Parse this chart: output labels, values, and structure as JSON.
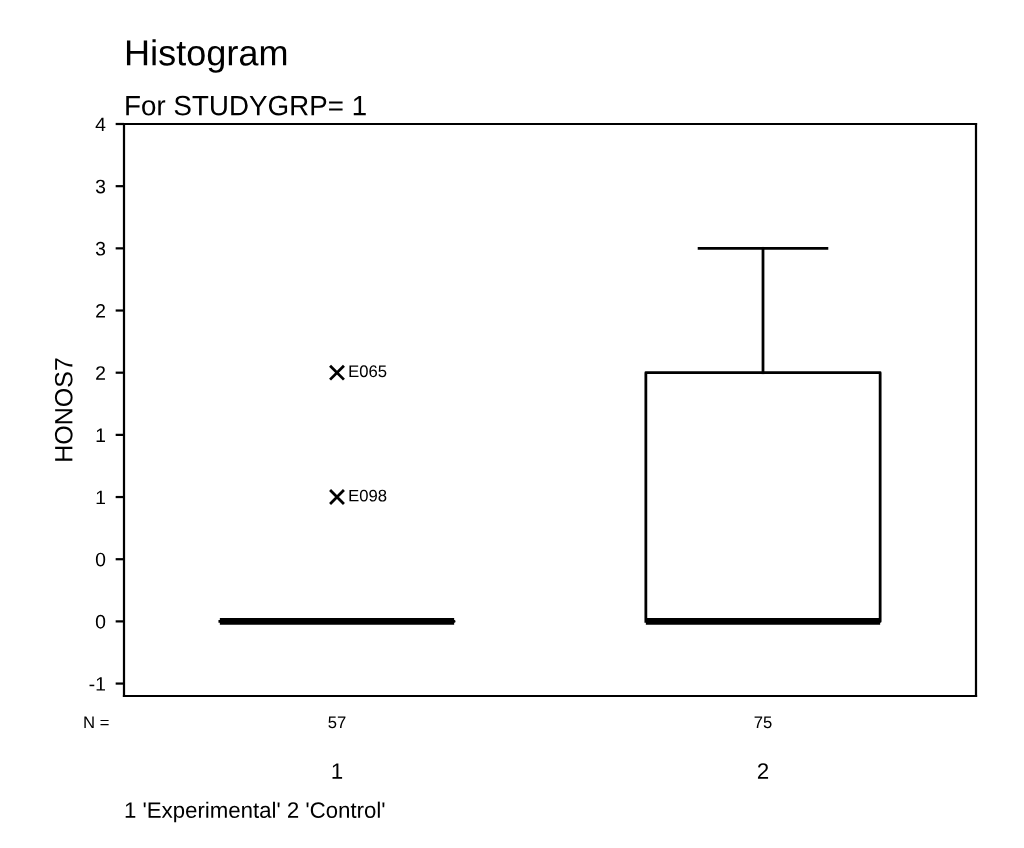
{
  "chart_data": {
    "type": "box",
    "title": "Histogram",
    "subtitle": "For STUDYGRP= 1",
    "ylabel": "HONOS7",
    "categories": [
      "1",
      "2"
    ],
    "boxes": [
      {
        "low": 0,
        "q1": 0,
        "median": 0,
        "q3": 0,
        "high": 0,
        "outliers": [
          2,
          1
        ]
      },
      {
        "low": 0,
        "q1": 0,
        "median": 0,
        "q3": 2,
        "high": 3
      }
    ],
    "ylim": [
      -0.6,
      4
    ],
    "yticks": [
      4,
      {
        "value": 3.5,
        "label": "3"
      },
      3,
      {
        "value": 2.5,
        "label": "2"
      },
      2,
      {
        "value": 1.5,
        "label": "1"
      },
      1,
      {
        "value": 0.5,
        "label": "0"
      },
      0,
      {
        "value": -0.5,
        "label": "-1"
      }
    ],
    "grid": false,
    "legend": false,
    "annotations": [
      "N =",
      "57",
      "75",
      "E065",
      "E098",
      "1 'Experimental' 2 'Control'"
    ]
  }
}
